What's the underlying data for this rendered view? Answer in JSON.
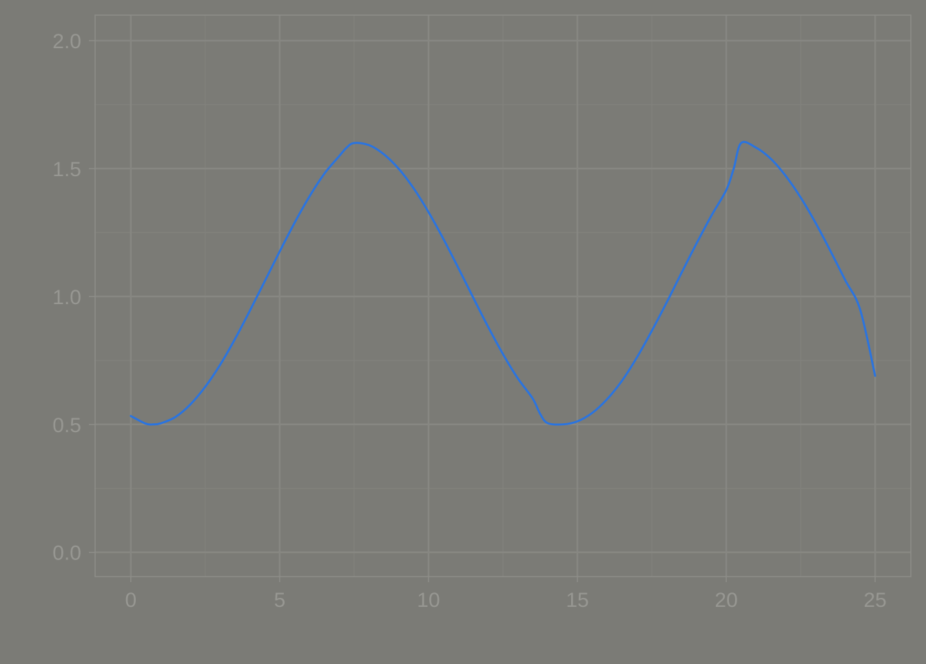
{
  "chart_data": {
    "type": "line",
    "title": "",
    "xlabel": "",
    "ylabel": "",
    "xlim": [
      -1.2,
      26.2
    ],
    "ylim": [
      -0.095,
      2.1
    ],
    "x_ticks": [
      0,
      5,
      10,
      15,
      20,
      25
    ],
    "x_tick_labels": [
      "0",
      "5",
      "10",
      "15",
      "20",
      "25"
    ],
    "y_ticks": [
      0.0,
      0.5,
      1.0,
      1.5,
      2.0
    ],
    "y_tick_labels": [
      "0.0",
      "0.5",
      "1.0",
      "1.5",
      "2.0"
    ],
    "grid": true,
    "legend": "none",
    "series": [
      {
        "color": "#2a74e0",
        "x": [
          0,
          0.5,
          0.75,
          1,
          1.5,
          2,
          2.5,
          3,
          3.5,
          4,
          4.5,
          5,
          5.5,
          6,
          6.5,
          7,
          7.25,
          7.5,
          8,
          8.5,
          9,
          9.5,
          10,
          10.5,
          11,
          11.5,
          12,
          12.5,
          13,
          13.5,
          13.75,
          14,
          14.5,
          15,
          15.5,
          16,
          16.5,
          17,
          17.5,
          18,
          18.5,
          19,
          19.5,
          20,
          20.25,
          20.5,
          21,
          21.5,
          22,
          22.5,
          23,
          23.5,
          24,
          24.5,
          25
        ],
        "y": [
          0.533,
          0.503,
          0.5,
          0.504,
          0.529,
          0.578,
          0.647,
          0.733,
          0.834,
          0.945,
          1.06,
          1.176,
          1.288,
          1.391,
          1.48,
          1.549,
          1.582,
          1.6,
          1.592,
          1.556,
          1.499,
          1.423,
          1.33,
          1.225,
          1.112,
          0.996,
          0.882,
          0.775,
          0.68,
          0.601,
          0.541,
          0.505,
          0.5,
          0.512,
          0.545,
          0.599,
          0.671,
          0.762,
          0.866,
          0.977,
          1.093,
          1.207,
          1.316,
          1.416,
          1.5,
          1.6,
          1.582,
          1.538,
          1.471,
          1.387,
          1.288,
          1.178,
          1.063,
          0.948,
          0.69
        ]
      }
    ],
    "colors": {
      "background": "#7b7b76",
      "plot_border": "#8e8e89",
      "grid_major": "#878782",
      "grid_minor": "#82827d",
      "tick_text": "#979792",
      "line": "#2a74e0"
    }
  }
}
